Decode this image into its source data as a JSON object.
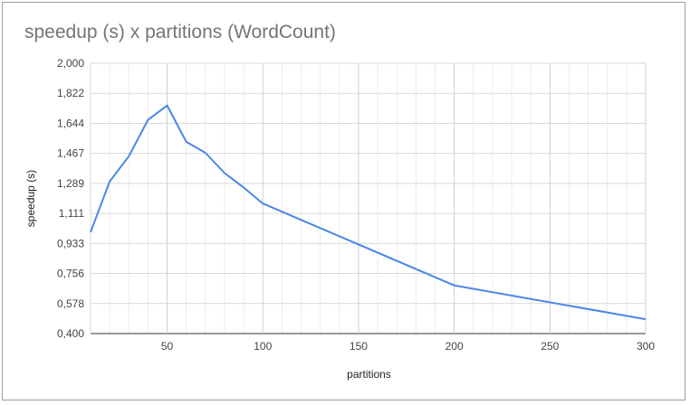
{
  "chart_data": {
    "type": "line",
    "title": "speedup (s) x partitions (WordCount)",
    "xlabel": "partitions",
    "ylabel": "speedup (s)",
    "xlim": [
      10,
      300
    ],
    "ylim": [
      0.4,
      2.0
    ],
    "y_ticks": [
      "0,400",
      "0,578",
      "0,756",
      "0,933",
      "1,111",
      "1,289",
      "1,467",
      "1,644",
      "1,822",
      "2,000"
    ],
    "x_ticks": [
      "50",
      "100",
      "150",
      "200",
      "250",
      "300"
    ],
    "grid": true,
    "legend": "none",
    "series": [
      {
        "color": "#4a86e8",
        "x": [
          10,
          20,
          30,
          40,
          50,
          60,
          70,
          80,
          90,
          100,
          200,
          300
        ],
        "y": [
          1.0,
          1.3,
          1.45,
          1.665,
          1.75,
          1.535,
          1.47,
          1.35,
          1.265,
          1.17,
          0.685,
          0.485
        ]
      }
    ]
  }
}
